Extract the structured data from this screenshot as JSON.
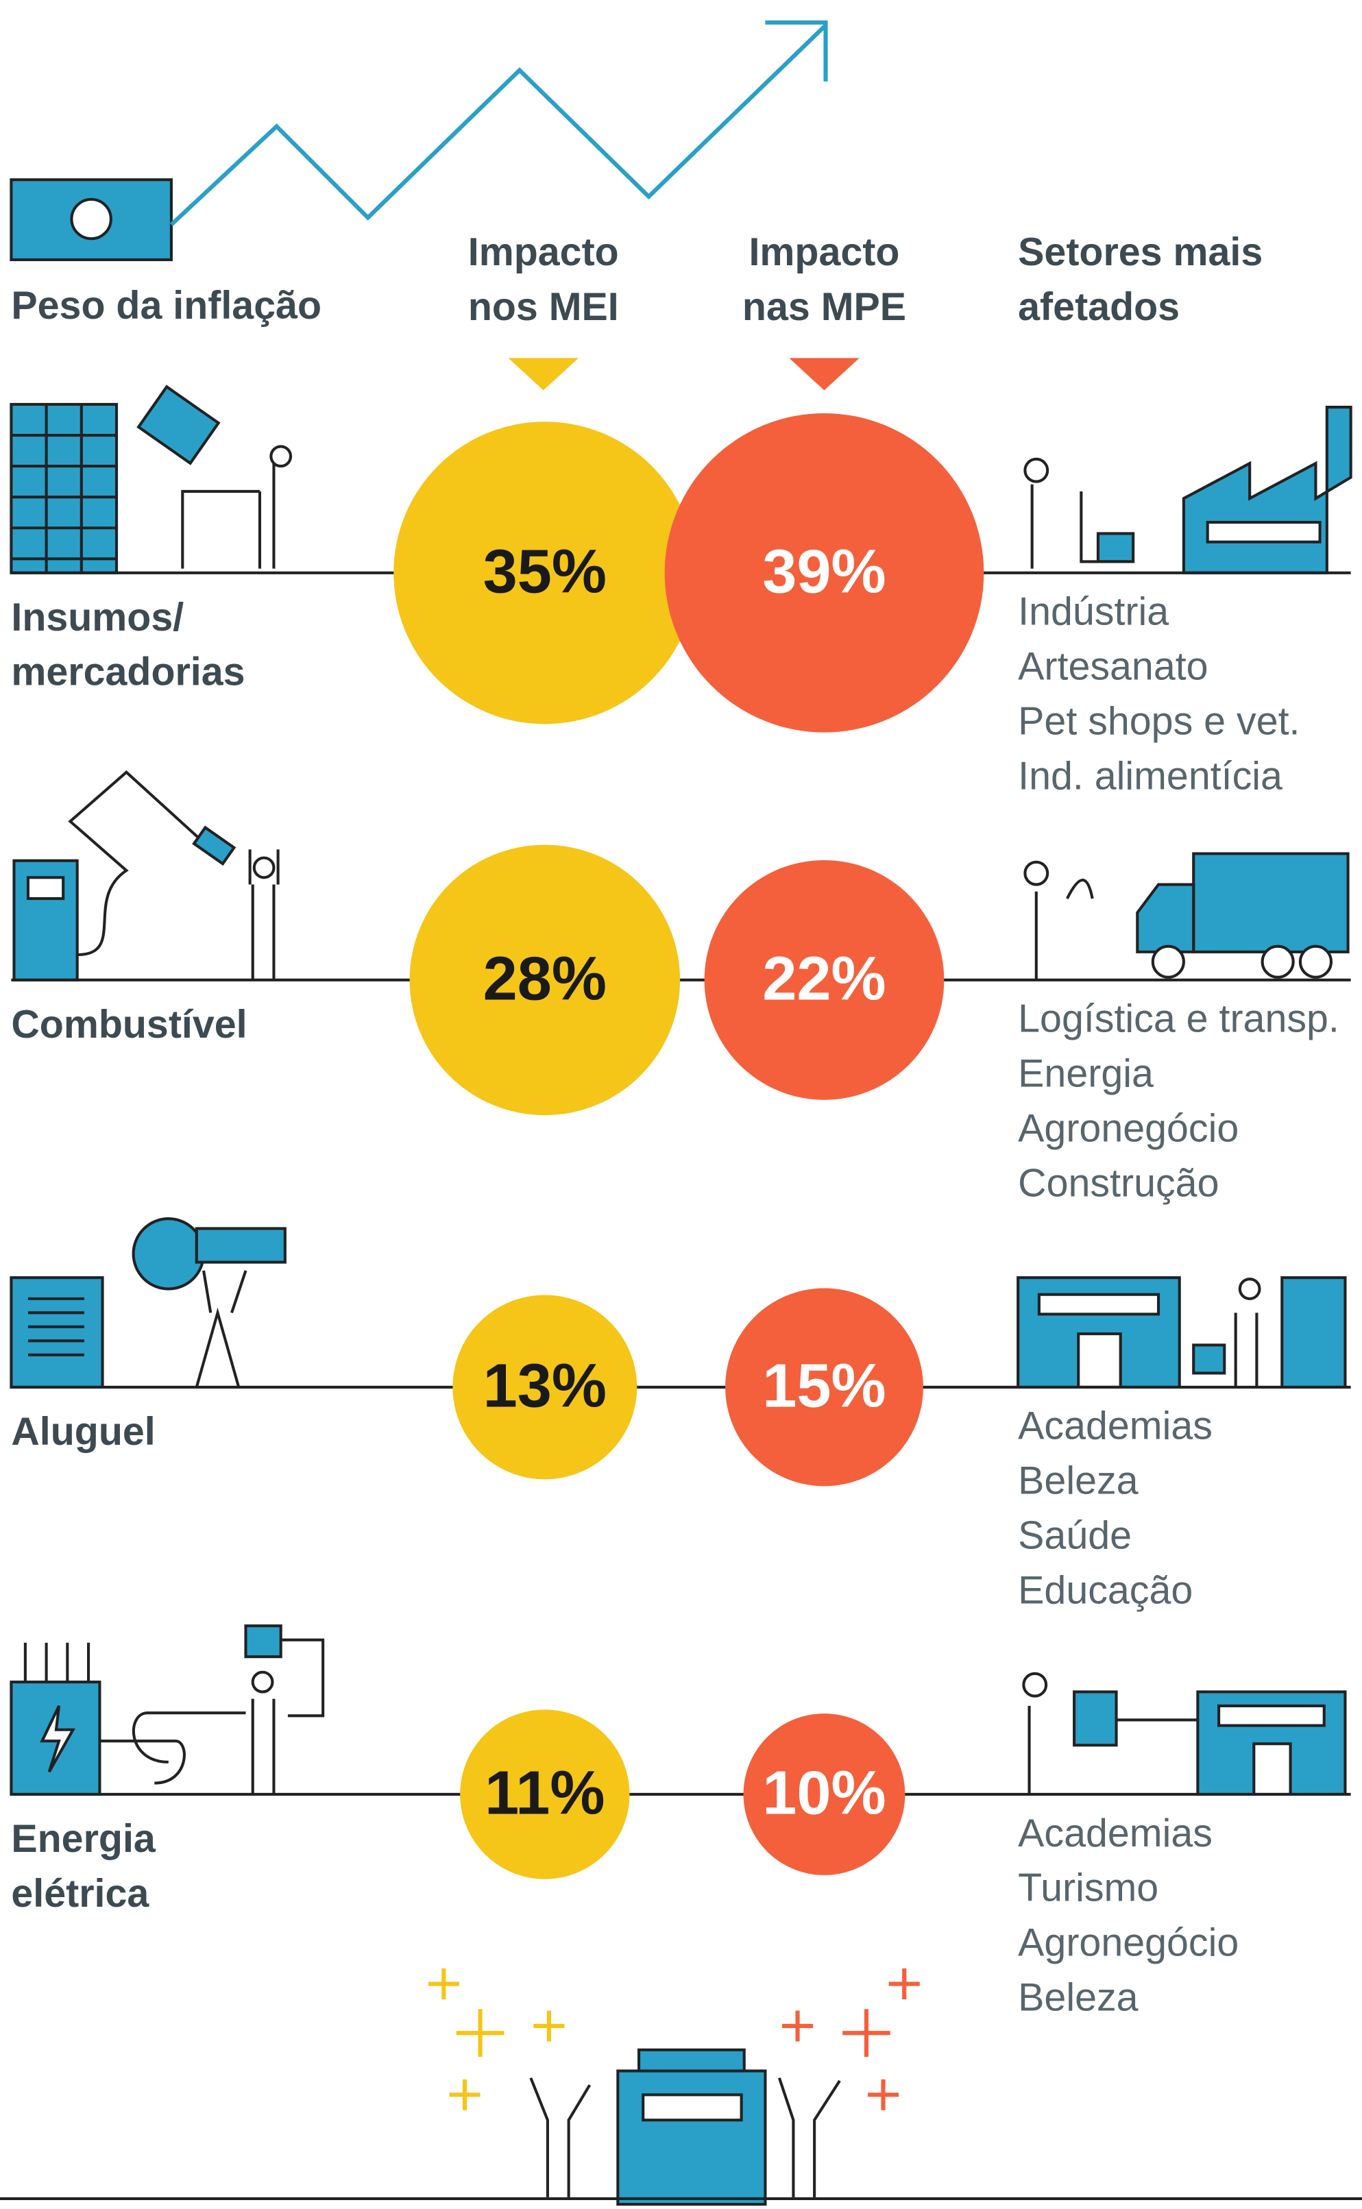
{
  "chart_data": {
    "type": "bubble",
    "title": "Peso da inflação",
    "sectors_title": "Setores mais afetados",
    "categories": [
      "Insumos/ mercadorias",
      "Combustível",
      "Aluguel",
      "Energia elétrica"
    ],
    "series": [
      {
        "name": "Impacto nos MEI",
        "color": "#f5c518",
        "text_color": "#1a1a1a",
        "values": [
          35,
          28,
          13,
          11
        ],
        "value_labels": [
          "35%",
          "28%",
          "13%",
          "11%"
        ]
      },
      {
        "name": "Impacto nas MPE",
        "color": "#f4603c",
        "text_color": "#ffffff",
        "values": [
          39,
          22,
          15,
          10
        ],
        "value_labels": [
          "39%",
          "22%",
          "15%",
          "10%"
        ]
      }
    ],
    "sectors": [
      [
        "Indústria",
        "Artesanato",
        "Pet shops e vet.",
        "Ind. alimentícia"
      ],
      [
        "Logística e transp.",
        "Energia",
        "Agronegócio",
        "Construção"
      ],
      [
        "Academias",
        "Beleza",
        "Saúde",
        "Educação"
      ],
      [
        "Academias",
        "Turismo",
        "Agronegócio",
        "Beleza"
      ]
    ]
  }
}
